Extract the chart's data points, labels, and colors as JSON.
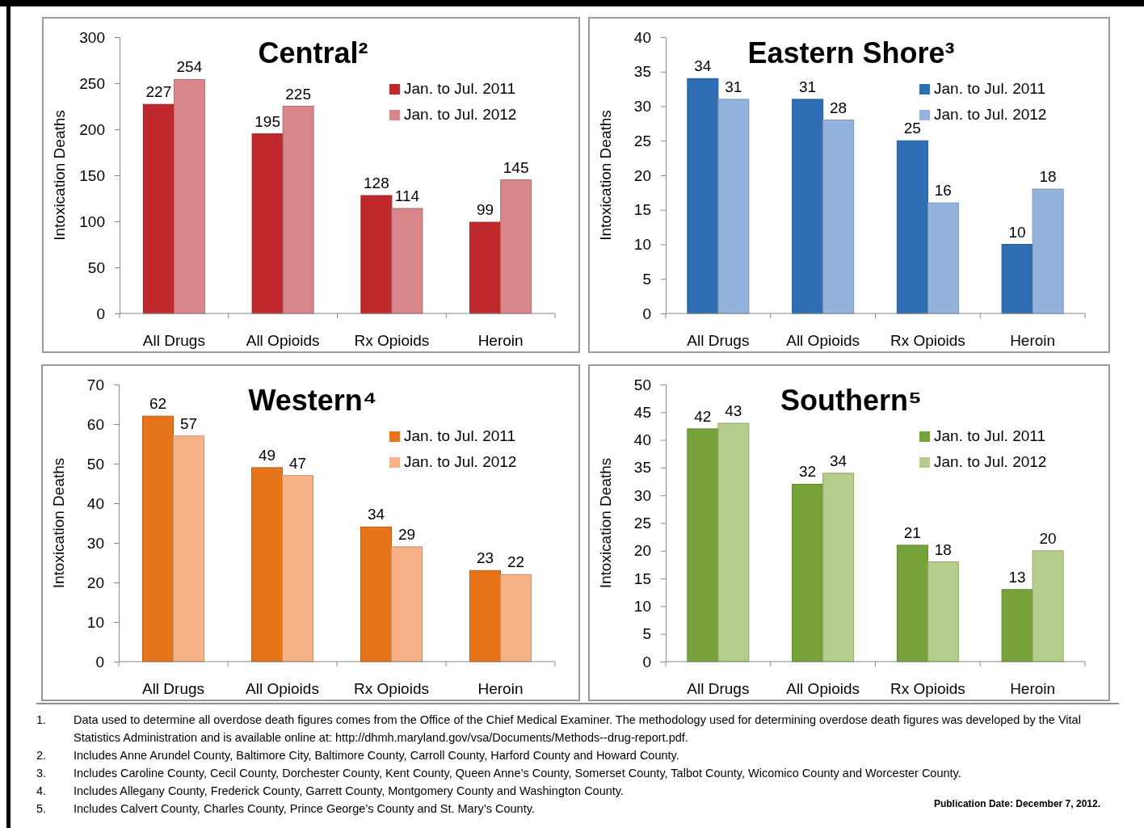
{
  "chart_data": [
    {
      "type": "bar",
      "title": "Central²",
      "ylabel": "Intoxication Deaths",
      "categories": [
        "All Drugs",
        "All Opioids",
        "Rx Opioids",
        "Heroin"
      ],
      "series": [
        {
          "name": "Jan. to Jul. 2011",
          "color": "#c0292b",
          "values": [
            227,
            195,
            128,
            99
          ]
        },
        {
          "name": "Jan. to Jul. 2012",
          "color": "#d9868a",
          "values": [
            254,
            225,
            114,
            145
          ]
        }
      ],
      "ylim": [
        0,
        300
      ],
      "yticks": [
        0,
        50,
        100,
        150,
        200,
        250,
        300
      ],
      "data_labels": true,
      "legend": "top right",
      "grid": false
    },
    {
      "type": "bar",
      "title": "Eastern Shore³",
      "ylabel": "Intoxication Deaths",
      "categories": [
        "All Drugs",
        "All Opioids",
        "Rx Opioids",
        "Heroin"
      ],
      "series": [
        {
          "name": "Jan. to Jul. 2011",
          "color": "#2f6db5",
          "values": [
            34,
            31,
            25,
            10
          ]
        },
        {
          "name": "Jan. to Jul. 2012",
          "color": "#94b3dc",
          "values": [
            31,
            28,
            16,
            18
          ]
        }
      ],
      "ylim": [
        0,
        40
      ],
      "yticks": [
        0,
        5,
        10,
        15,
        20,
        25,
        30,
        35,
        40
      ],
      "data_labels": true,
      "legend": "top right",
      "grid": false
    },
    {
      "type": "bar",
      "title": "Western⁴",
      "ylabel": "Intoxication Deaths",
      "categories": [
        "All Drugs",
        "All Opioids",
        "Rx Opioids",
        "Heroin"
      ],
      "series": [
        {
          "name": "Jan. to Jul. 2011",
          "color": "#e8741a",
          "values": [
            62,
            49,
            34,
            23
          ]
        },
        {
          "name": "Jan. to Jul. 2012",
          "color": "#f6b186",
          "values": [
            57,
            47,
            29,
            22
          ]
        }
      ],
      "ylim": [
        0,
        70
      ],
      "yticks": [
        0,
        10,
        20,
        30,
        40,
        50,
        60,
        70
      ],
      "data_labels": true,
      "legend": "top right",
      "grid": false
    },
    {
      "type": "bar",
      "title": "Southern⁵",
      "ylabel": "Intoxication Deaths",
      "categories": [
        "All Drugs",
        "All Opioids",
        "Rx Opioids",
        "Heroin"
      ],
      "series": [
        {
          "name": "Jan. to Jul. 2011",
          "color": "#77a23a",
          "values": [
            42,
            32,
            21,
            13
          ]
        },
        {
          "name": "Jan. to Jul. 2012",
          "color": "#b5cd8a",
          "values": [
            43,
            34,
            18,
            20
          ]
        }
      ],
      "ylim": [
        0,
        50
      ],
      "yticks": [
        0,
        5,
        10,
        15,
        20,
        25,
        30,
        35,
        40,
        45,
        50
      ],
      "data_labels": true,
      "legend": "top right",
      "grid": false,
      "annotations": [
        "1. Data used to determine all overdose death figures comes from the Office of the Chief Medical Examiner. The methodology used for determining overdose death figures was developed by the Vital Statistics Administration and is available online at: http://dhmh.maryland.gov/vsa/Documents/Methods--drug-report.pdf.",
        "2. Includes Anne Arundel County, Baltimore City, Baltimore County, Carroll County, Harford County and Howard County.",
        "3. Includes Caroline County, Cecil County, Dorchester County, Kent County, Queen Anne’s County, Somerset County, Talbot County, Wicomico County and Worcester County.",
        "4. Includes Allegany County, Frederick County, Garrett County, Montgomery County and Washington County.",
        "5. Includes Calvert County, Charles County, Prince George’s County and St. Mary’s County.",
        "Publication Date: December 7, 2012."
      ]
    }
  ]
}
